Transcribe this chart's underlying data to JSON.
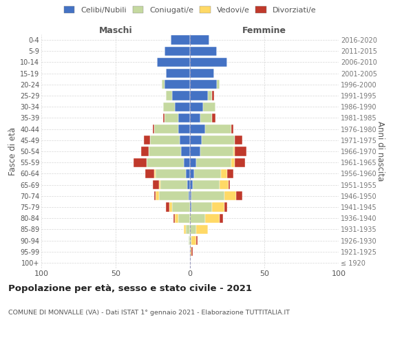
{
  "age_groups": [
    "100+",
    "95-99",
    "90-94",
    "85-89",
    "80-84",
    "75-79",
    "70-74",
    "65-69",
    "60-64",
    "55-59",
    "50-54",
    "45-49",
    "40-44",
    "35-39",
    "30-34",
    "25-29",
    "20-24",
    "15-19",
    "10-14",
    "5-9",
    "0-4"
  ],
  "birth_years": [
    "≤ 1920",
    "1921-1925",
    "1926-1930",
    "1931-1935",
    "1936-1940",
    "1941-1945",
    "1946-1950",
    "1951-1955",
    "1956-1960",
    "1961-1965",
    "1966-1970",
    "1971-1975",
    "1976-1980",
    "1981-1985",
    "1986-1990",
    "1991-1995",
    "1996-2000",
    "2001-2005",
    "2006-2010",
    "2011-2015",
    "2016-2020"
  ],
  "males": {
    "celibi": [
      0,
      0,
      0,
      0,
      0,
      0,
      1,
      2,
      3,
      4,
      6,
      7,
      8,
      8,
      10,
      12,
      17,
      16,
      22,
      17,
      13
    ],
    "coniugati": [
      0,
      0,
      1,
      3,
      8,
      12,
      20,
      18,
      20,
      25,
      22,
      20,
      16,
      9,
      8,
      4,
      2,
      0,
      0,
      0,
      0
    ],
    "vedovi": [
      0,
      0,
      0,
      1,
      2,
      2,
      2,
      1,
      1,
      0,
      0,
      0,
      0,
      0,
      0,
      0,
      0,
      0,
      0,
      0,
      0
    ],
    "divorziati": [
      0,
      0,
      0,
      0,
      1,
      2,
      1,
      4,
      6,
      9,
      5,
      4,
      1,
      1,
      0,
      0,
      0,
      0,
      0,
      0,
      0
    ]
  },
  "females": {
    "nubili": [
      0,
      0,
      0,
      0,
      0,
      1,
      1,
      2,
      3,
      4,
      7,
      8,
      10,
      7,
      9,
      12,
      18,
      16,
      25,
      18,
      13
    ],
    "coniugate": [
      0,
      0,
      1,
      4,
      10,
      14,
      22,
      18,
      18,
      24,
      22,
      22,
      18,
      8,
      8,
      3,
      2,
      0,
      0,
      0,
      0
    ],
    "vedove": [
      0,
      1,
      3,
      8,
      10,
      8,
      8,
      6,
      4,
      2,
      1,
      0,
      0,
      0,
      0,
      0,
      0,
      0,
      0,
      0,
      0
    ],
    "divorziate": [
      0,
      1,
      1,
      0,
      2,
      2,
      4,
      1,
      4,
      7,
      8,
      5,
      1,
      2,
      0,
      1,
      0,
      0,
      0,
      0,
      0
    ]
  },
  "color_celibi": "#4472c4",
  "color_coniugati": "#c5d9a0",
  "color_vedovi": "#ffd966",
  "color_divorziati": "#c0392b",
  "title": "Popolazione per età, sesso e stato civile - 2021",
  "subtitle": "COMUNE DI MONVALLE (VA) - Dati ISTAT 1° gennaio 2021 - Elaborazione TUTTITALIA.IT",
  "xlabel_maschi": "Maschi",
  "xlabel_femmine": "Femmine",
  "ylabel_left": "Fasce di età",
  "ylabel_right": "Anni di nascita",
  "xlim": 100,
  "background_color": "#ffffff",
  "grid_color": "#cccccc"
}
